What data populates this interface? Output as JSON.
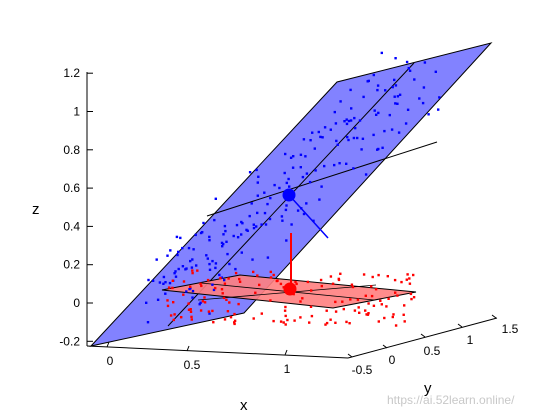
{
  "chart_data": {
    "type": "scatter",
    "projection": "3d",
    "xlabel": "x",
    "ylabel": "y",
    "zlabel": "z",
    "x_ticks": [
      "0",
      "0.5",
      "1"
    ],
    "y_ticks": [
      "-0.5",
      "0",
      "0.5",
      "1",
      "1.5"
    ],
    "z_ticks": [
      "-0.2",
      "0",
      "0.2",
      "0.4",
      "0.6",
      "0.8",
      "1",
      "1.2"
    ],
    "zlim": [
      -0.2,
      1.2
    ],
    "grid": false,
    "colors": {
      "blue_series": "#0000ff",
      "blue_plane": "#7b7bff",
      "red_series": "#ff0000",
      "red_plane": "#ff7f7f"
    },
    "series": [
      {
        "color": "blue",
        "description_points": "samples spread along tilted plane",
        "center_z": 0.58,
        "z_values": [
          0.92,
          0.95,
          0.88,
          0.86,
          0.84,
          0.82,
          0.8,
          0.78,
          0.75,
          0.73,
          0.7,
          0.68,
          0.66,
          0.64,
          0.62,
          0.6,
          0.57,
          0.55,
          0.52,
          0.5,
          0.47,
          0.45,
          0.42,
          0.4,
          0.37,
          0.35,
          0.32,
          0.3,
          0.27,
          0.25,
          0.22,
          0.2,
          0.17,
          0.15,
          0.12,
          0.1,
          0.07,
          0.05,
          0.03
        ]
      },
      {
        "color": "red",
        "center_z": 0.0,
        "z_values": [
          0.17,
          0.14,
          0.12,
          0.1,
          0.09,
          0.08,
          0.06,
          0.05,
          0.04,
          0.03,
          0.02,
          0.01,
          0.0,
          -0.01,
          -0.02,
          -0.03,
          -0.04,
          -0.05,
          -0.06,
          -0.07,
          -0.08,
          -0.09,
          -0.1
        ]
      }
    ]
  },
  "watermark": "https://ai.52learn.online/"
}
